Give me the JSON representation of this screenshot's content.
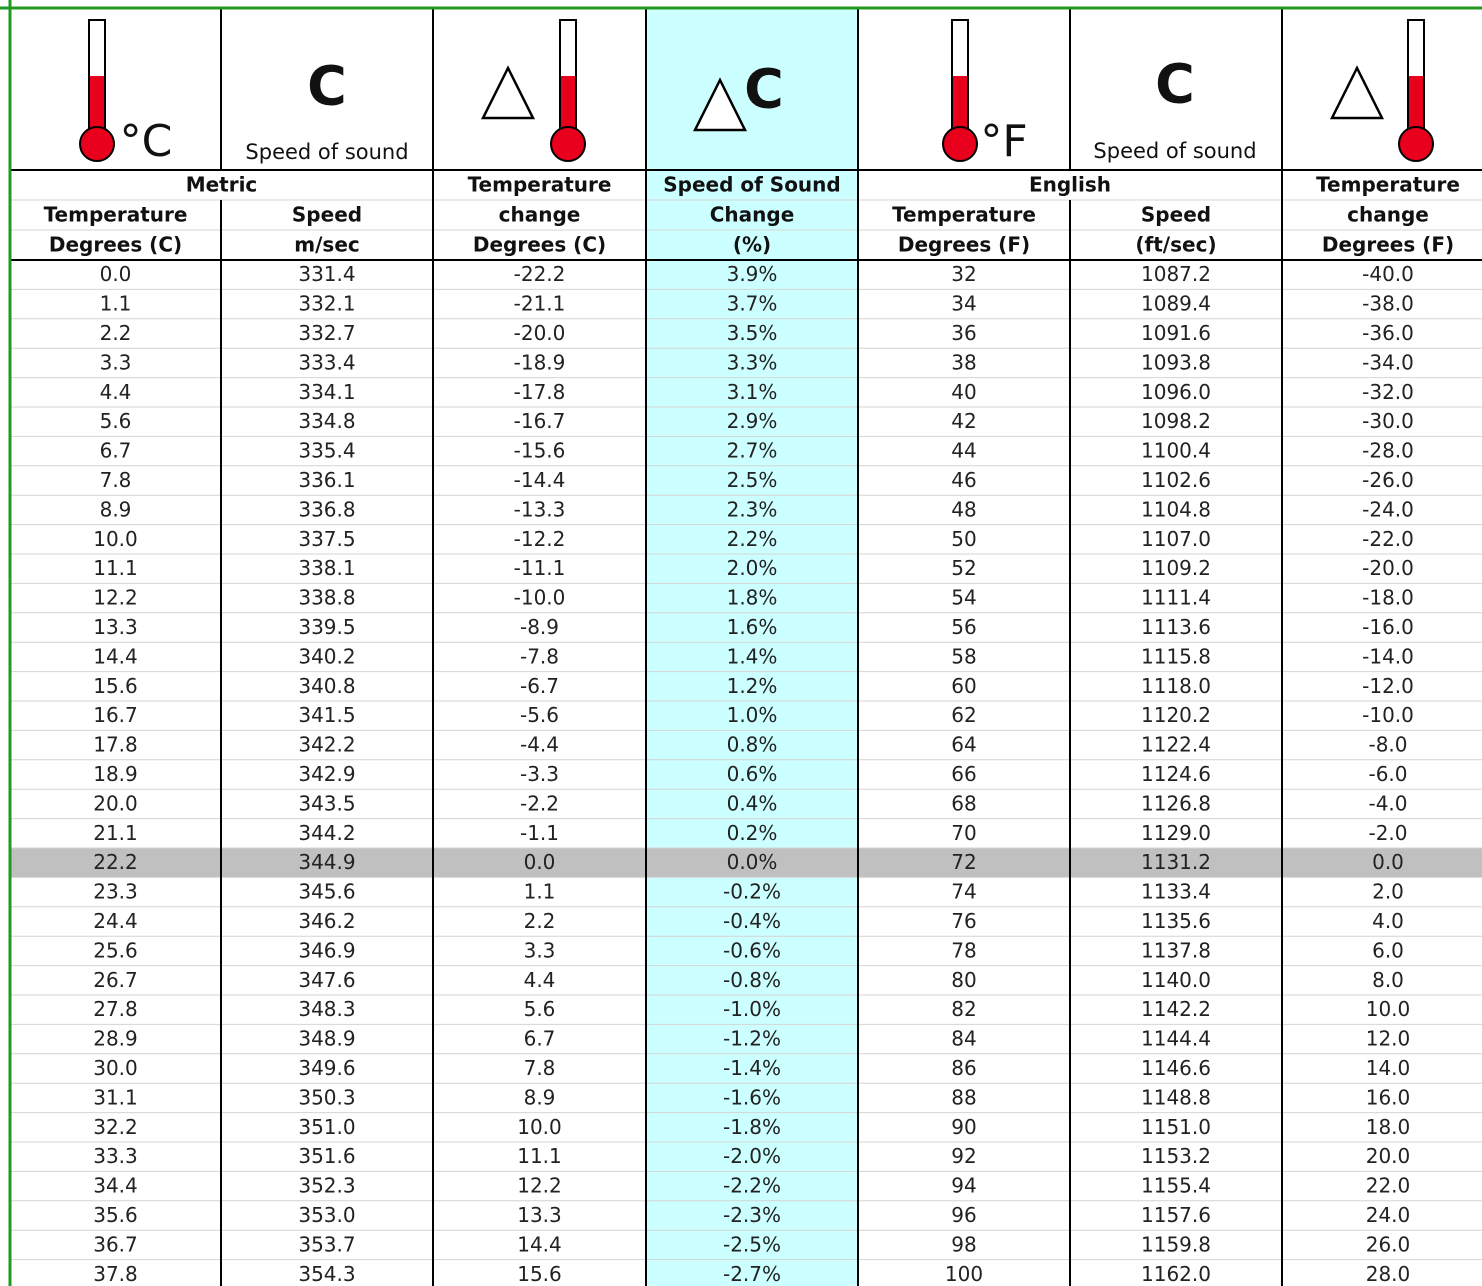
{
  "icons": {
    "celsius": "°C",
    "speed_symbol_metric": "C",
    "speed_caption_metric": "Speed of sound",
    "change_symbol": "C",
    "fahrenheit": "°F",
    "speed_symbol_english": "C",
    "speed_caption_english": "Speed of sound"
  },
  "header": {
    "groups": [
      "Metric",
      "Temperature",
      "Speed of Sound",
      "English",
      "Temperature"
    ],
    "names": [
      "Temperature",
      "Speed",
      "change",
      "Change",
      "Temperature",
      "Speed",
      "change"
    ],
    "units": [
      "Degrees (C)",
      "m/sec",
      "Degrees (C)",
      "(%)",
      "Degrees (F)",
      "(ft/sec)",
      "Degrees (F)"
    ]
  },
  "table": {
    "rows": [
      [
        "0.0",
        "331.4",
        "-22.2",
        "3.9%",
        "32",
        "1087.2",
        "-40.0"
      ],
      [
        "1.1",
        "332.1",
        "-21.1",
        "3.7%",
        "34",
        "1089.4",
        "-38.0"
      ],
      [
        "2.2",
        "332.7",
        "-20.0",
        "3.5%",
        "36",
        "1091.6",
        "-36.0"
      ],
      [
        "3.3",
        "333.4",
        "-18.9",
        "3.3%",
        "38",
        "1093.8",
        "-34.0"
      ],
      [
        "4.4",
        "334.1",
        "-17.8",
        "3.1%",
        "40",
        "1096.0",
        "-32.0"
      ],
      [
        "5.6",
        "334.8",
        "-16.7",
        "2.9%",
        "42",
        "1098.2",
        "-30.0"
      ],
      [
        "6.7",
        "335.4",
        "-15.6",
        "2.7%",
        "44",
        "1100.4",
        "-28.0"
      ],
      [
        "7.8",
        "336.1",
        "-14.4",
        "2.5%",
        "46",
        "1102.6",
        "-26.0"
      ],
      [
        "8.9",
        "336.8",
        "-13.3",
        "2.3%",
        "48",
        "1104.8",
        "-24.0"
      ],
      [
        "10.0",
        "337.5",
        "-12.2",
        "2.2%",
        "50",
        "1107.0",
        "-22.0"
      ],
      [
        "11.1",
        "338.1",
        "-11.1",
        "2.0%",
        "52",
        "1109.2",
        "-20.0"
      ],
      [
        "12.2",
        "338.8",
        "-10.0",
        "1.8%",
        "54",
        "1111.4",
        "-18.0"
      ],
      [
        "13.3",
        "339.5",
        "-8.9",
        "1.6%",
        "56",
        "1113.6",
        "-16.0"
      ],
      [
        "14.4",
        "340.2",
        "-7.8",
        "1.4%",
        "58",
        "1115.8",
        "-14.0"
      ],
      [
        "15.6",
        "340.8",
        "-6.7",
        "1.2%",
        "60",
        "1118.0",
        "-12.0"
      ],
      [
        "16.7",
        "341.5",
        "-5.6",
        "1.0%",
        "62",
        "1120.2",
        "-10.0"
      ],
      [
        "17.8",
        "342.2",
        "-4.4",
        "0.8%",
        "64",
        "1122.4",
        "-8.0"
      ],
      [
        "18.9",
        "342.9",
        "-3.3",
        "0.6%",
        "66",
        "1124.6",
        "-6.0"
      ],
      [
        "20.0",
        "343.5",
        "-2.2",
        "0.4%",
        "68",
        "1126.8",
        "-4.0"
      ],
      [
        "21.1",
        "344.2",
        "-1.1",
        "0.2%",
        "70",
        "1129.0",
        "-2.0"
      ],
      [
        "22.2",
        "344.9",
        "0.0",
        "0.0%",
        "72",
        "1131.2",
        "0.0"
      ],
      [
        "23.3",
        "345.6",
        "1.1",
        "-0.2%",
        "74",
        "1133.4",
        "2.0"
      ],
      [
        "24.4",
        "346.2",
        "2.2",
        "-0.4%",
        "76",
        "1135.6",
        "4.0"
      ],
      [
        "25.6",
        "346.9",
        "3.3",
        "-0.6%",
        "78",
        "1137.8",
        "6.0"
      ],
      [
        "26.7",
        "347.6",
        "4.4",
        "-0.8%",
        "80",
        "1140.0",
        "8.0"
      ],
      [
        "27.8",
        "348.3",
        "5.6",
        "-1.0%",
        "82",
        "1142.2",
        "10.0"
      ],
      [
        "28.9",
        "348.9",
        "6.7",
        "-1.2%",
        "84",
        "1144.4",
        "12.0"
      ],
      [
        "30.0",
        "349.6",
        "7.8",
        "-1.4%",
        "86",
        "1146.6",
        "14.0"
      ],
      [
        "31.1",
        "350.3",
        "8.9",
        "-1.6%",
        "88",
        "1148.8",
        "16.0"
      ],
      [
        "32.2",
        "351.0",
        "10.0",
        "-1.8%",
        "90",
        "1151.0",
        "18.0"
      ],
      [
        "33.3",
        "351.6",
        "11.1",
        "-2.0%",
        "92",
        "1153.2",
        "20.0"
      ],
      [
        "34.4",
        "352.3",
        "12.2",
        "-2.2%",
        "94",
        "1155.4",
        "22.0"
      ],
      [
        "35.6",
        "353.0",
        "13.3",
        "-2.3%",
        "96",
        "1157.6",
        "24.0"
      ],
      [
        "36.7",
        "353.7",
        "14.4",
        "-2.5%",
        "98",
        "1159.8",
        "26.0"
      ],
      [
        "37.8",
        "354.3",
        "15.6",
        "-2.7%",
        "100",
        "1162.0",
        "28.0"
      ]
    ]
  }
}
